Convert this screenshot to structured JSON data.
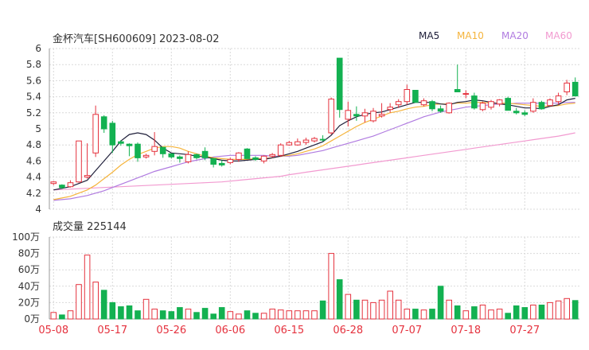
{
  "header": {
    "name": "金杯汽车",
    "code": "[SH600609]",
    "date": "2023-08-02"
  },
  "legend": [
    {
      "label": "MA5",
      "color": "#1f1f3a"
    },
    {
      "label": "MA10",
      "color": "#f5b43c"
    },
    {
      "label": "MA20",
      "color": "#b07be0"
    },
    {
      "label": "MA60",
      "color": "#f29ad0"
    }
  ],
  "volume_header": {
    "label": "成交量",
    "value": "225144"
  },
  "colors": {
    "up": "#e5323e",
    "down": "#13b151",
    "grid": "#d9d9d9",
    "axis_text": "#333333",
    "date_text": "#e5323e"
  },
  "chart_data": [
    {
      "type": "candlestick",
      "ylim": [
        4,
        6
      ],
      "yticks": [
        "4",
        "4.2",
        "4.4",
        "4.6",
        "4.8",
        "5",
        "5.2",
        "5.4",
        "5.6",
        "5.8",
        "6"
      ],
      "xticks": [
        {
          "label": "05-08",
          "index": 0
        },
        {
          "label": "05-17",
          "index": 7
        },
        {
          "label": "05-26",
          "index": 14
        },
        {
          "label": "06-06",
          "index": 21
        },
        {
          "label": "06-15",
          "index": 28
        },
        {
          "label": "06-28",
          "index": 35
        },
        {
          "label": "07-07",
          "index": 42
        },
        {
          "label": "07-18",
          "index": 49
        },
        {
          "label": "07-27",
          "index": 56
        }
      ],
      "ohlc": [
        [
          4.32,
          4.35,
          4.3,
          4.34
        ],
        [
          4.3,
          4.31,
          4.25,
          4.27
        ],
        [
          4.28,
          4.36,
          4.27,
          4.33
        ],
        [
          4.34,
          4.85,
          4.33,
          4.85
        ],
        [
          4.4,
          4.82,
          4.38,
          4.42
        ],
        [
          4.7,
          5.29,
          4.65,
          5.18
        ],
        [
          5.15,
          5.17,
          4.95,
          5.0
        ],
        [
          5.07,
          5.1,
          4.7,
          4.8
        ],
        [
          4.84,
          4.86,
          4.79,
          4.82
        ],
        [
          4.81,
          4.82,
          4.66,
          4.79
        ],
        [
          4.81,
          4.83,
          4.59,
          4.64
        ],
        [
          4.65,
          4.69,
          4.63,
          4.67
        ],
        [
          4.72,
          4.96,
          4.67,
          4.78
        ],
        [
          4.77,
          4.77,
          4.64,
          4.69
        ],
        [
          4.69,
          4.69,
          4.63,
          4.65
        ],
        [
          4.65,
          4.67,
          4.58,
          4.63
        ],
        [
          4.59,
          4.72,
          4.57,
          4.68
        ],
        [
          4.68,
          4.69,
          4.62,
          4.64
        ],
        [
          4.72,
          4.77,
          4.61,
          4.64
        ],
        [
          4.63,
          4.63,
          4.52,
          4.56
        ],
        [
          4.57,
          4.61,
          4.53,
          4.55
        ],
        [
          4.58,
          4.64,
          4.56,
          4.62
        ],
        [
          4.62,
          4.71,
          4.59,
          4.7
        ],
        [
          4.75,
          4.76,
          4.63,
          4.63
        ],
        [
          4.64,
          4.66,
          4.6,
          4.62
        ],
        [
          4.6,
          4.67,
          4.57,
          4.66
        ],
        [
          4.66,
          4.7,
          4.64,
          4.68
        ],
        [
          4.67,
          4.82,
          4.65,
          4.8
        ],
        [
          4.8,
          4.85,
          4.79,
          4.83
        ],
        [
          4.8,
          4.88,
          4.79,
          4.84
        ],
        [
          4.83,
          4.89,
          4.8,
          4.86
        ],
        [
          4.85,
          4.9,
          4.83,
          4.88
        ],
        [
          4.87,
          4.92,
          4.84,
          4.86
        ],
        [
          4.95,
          5.39,
          4.93,
          5.37
        ],
        [
          5.88,
          5.88,
          5.14,
          5.24
        ],
        [
          5.12,
          5.34,
          5.03,
          5.23
        ],
        [
          5.18,
          5.28,
          5.1,
          5.16
        ],
        [
          5.16,
          5.25,
          5.08,
          5.2
        ],
        [
          5.1,
          5.26,
          5.08,
          5.22
        ],
        [
          5.16,
          5.32,
          5.14,
          5.18
        ],
        [
          5.24,
          5.32,
          5.2,
          5.27
        ],
        [
          5.3,
          5.37,
          5.26,
          5.34
        ],
        [
          5.34,
          5.55,
          5.3,
          5.49
        ],
        [
          5.48,
          5.48,
          5.34,
          5.33
        ],
        [
          5.3,
          5.38,
          5.28,
          5.35
        ],
        [
          5.34,
          5.36,
          5.22,
          5.25
        ],
        [
          5.25,
          5.29,
          5.2,
          5.22
        ],
        [
          5.2,
          5.33,
          5.19,
          5.32
        ],
        [
          5.49,
          5.8,
          5.47,
          5.46
        ],
        [
          5.43,
          5.48,
          5.38,
          5.44
        ],
        [
          5.41,
          5.45,
          5.24,
          5.26
        ],
        [
          5.24,
          5.34,
          5.22,
          5.32
        ],
        [
          5.27,
          5.36,
          5.24,
          5.34
        ],
        [
          5.31,
          5.37,
          5.28,
          5.36
        ],
        [
          5.38,
          5.4,
          5.24,
          5.23
        ],
        [
          5.22,
          5.26,
          5.18,
          5.2
        ],
        [
          5.2,
          5.23,
          5.16,
          5.18
        ],
        [
          5.22,
          5.38,
          5.2,
          5.33
        ],
        [
          5.33,
          5.35,
          5.24,
          5.25
        ],
        [
          5.29,
          5.38,
          5.28,
          5.36
        ],
        [
          5.34,
          5.45,
          5.3,
          5.41
        ],
        [
          5.46,
          5.61,
          5.42,
          5.57
        ],
        [
          5.58,
          5.64,
          5.41,
          5.41
        ]
      ],
      "ma5": [
        4.24,
        4.26,
        4.28,
        4.32,
        4.36,
        4.48,
        4.6,
        4.72,
        4.85,
        4.93,
        4.95,
        4.93,
        4.86,
        4.76,
        4.7,
        4.69,
        4.68,
        4.66,
        4.65,
        4.63,
        4.61,
        4.6,
        4.6,
        4.61,
        4.62,
        4.62,
        4.64,
        4.66,
        4.69,
        4.72,
        4.76,
        4.8,
        4.84,
        4.92,
        5.04,
        5.1,
        5.15,
        5.18,
        5.2,
        5.21,
        5.24,
        5.27,
        5.3,
        5.33,
        5.33,
        5.33,
        5.31,
        5.3,
        5.33,
        5.34,
        5.36,
        5.35,
        5.33,
        5.31,
        5.3,
        5.28,
        5.26,
        5.26,
        5.25,
        5.28,
        5.3,
        5.36,
        5.38
      ],
      "ma10": [
        4.12,
        4.14,
        4.16,
        4.2,
        4.24,
        4.3,
        4.38,
        4.46,
        4.55,
        4.62,
        4.68,
        4.72,
        4.76,
        4.78,
        4.78,
        4.76,
        4.72,
        4.69,
        4.66,
        4.64,
        4.63,
        4.62,
        4.62,
        4.62,
        4.63,
        4.63,
        4.64,
        4.66,
        4.67,
        4.69,
        4.72,
        4.75,
        4.79,
        4.85,
        4.91,
        4.97,
        5.03,
        5.08,
        5.12,
        5.16,
        5.2,
        5.22,
        5.25,
        5.27,
        5.28,
        5.3,
        5.31,
        5.31,
        5.32,
        5.32,
        5.33,
        5.33,
        5.32,
        5.32,
        5.32,
        5.31,
        5.3,
        5.29,
        5.28,
        5.28,
        5.29,
        5.31,
        5.32
      ],
      "ma20": [
        4.11,
        4.12,
        4.13,
        4.15,
        4.17,
        4.2,
        4.23,
        4.27,
        4.31,
        4.35,
        4.39,
        4.43,
        4.47,
        4.5,
        4.53,
        4.56,
        4.59,
        4.61,
        4.63,
        4.65,
        4.66,
        4.67,
        4.67,
        4.67,
        4.67,
        4.67,
        4.66,
        4.66,
        4.66,
        4.67,
        4.69,
        4.71,
        4.73,
        4.76,
        4.79,
        4.82,
        4.85,
        4.88,
        4.91,
        4.95,
        4.99,
        5.03,
        5.07,
        5.11,
        5.15,
        5.18,
        5.21,
        5.23,
        5.25,
        5.27,
        5.28,
        5.29,
        5.3,
        5.31,
        5.31,
        5.32,
        5.32,
        5.32,
        5.32,
        5.32,
        5.32,
        5.33,
        5.33
      ],
      "ma60": [
        4.24,
        4.245,
        4.25,
        4.255,
        4.26,
        4.265,
        4.27,
        4.275,
        4.28,
        4.285,
        4.29,
        4.295,
        4.3,
        4.305,
        4.31,
        4.315,
        4.32,
        4.325,
        4.33,
        4.335,
        4.34,
        4.35,
        4.36,
        4.37,
        4.38,
        4.39,
        4.4,
        4.41,
        4.43,
        4.445,
        4.46,
        4.475,
        4.49,
        4.505,
        4.52,
        4.535,
        4.55,
        4.565,
        4.58,
        4.595,
        4.61,
        4.625,
        4.64,
        4.655,
        4.67,
        4.685,
        4.7,
        4.715,
        4.73,
        4.745,
        4.76,
        4.775,
        4.79,
        4.805,
        4.82,
        4.835,
        4.85,
        4.865,
        4.88,
        4.895,
        4.91,
        4.93,
        4.95
      ]
    },
    {
      "type": "bar",
      "ylim": [
        0,
        1000000
      ],
      "yticks": [
        "0万",
        "20万",
        "40万",
        "60万",
        "80万",
        "100万"
      ],
      "values": [
        80000,
        50000,
        100000,
        420000,
        780000,
        450000,
        350000,
        200000,
        150000,
        160000,
        100000,
        240000,
        120000,
        100000,
        90000,
        140000,
        120000,
        80000,
        130000,
        60000,
        140000,
        90000,
        60000,
        100000,
        70000,
        70000,
        120000,
        110000,
        100000,
        100000,
        100000,
        100000,
        220000,
        800000,
        480000,
        300000,
        230000,
        230000,
        200000,
        230000,
        340000,
        230000,
        120000,
        120000,
        110000,
        120000,
        400000,
        230000,
        160000,
        100000,
        150000,
        170000,
        110000,
        120000,
        70000,
        160000,
        140000,
        170000,
        170000,
        200000,
        220000,
        250000,
        225144
      ]
    }
  ]
}
